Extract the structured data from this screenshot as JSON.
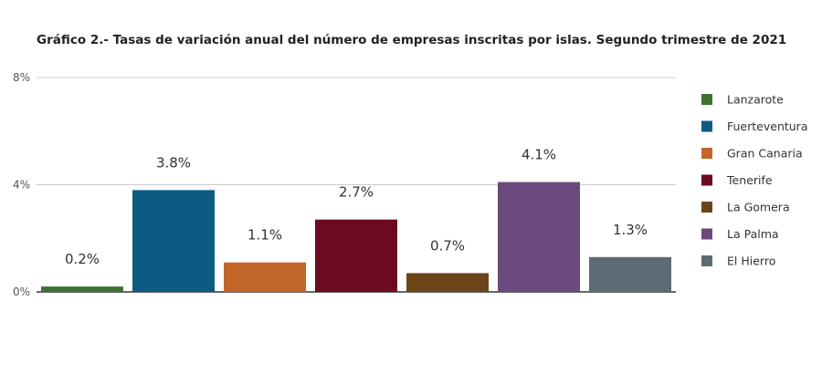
{
  "chart_data": {
    "type": "bar",
    "title": "Gráfico 2.- Tasas de variación anual del número de empresas inscritas por islas. Segundo trimestre de 2021",
    "categories": [
      "Lanzarote",
      "Fuerteventura",
      "Gran Canaria",
      "Tenerife",
      "La Gomera",
      "La Palma",
      "El Hierro"
    ],
    "values": [
      0.2,
      3.8,
      1.1,
      2.7,
      0.7,
      4.1,
      1.3
    ],
    "data_labels": [
      "0.2%",
      "3.8%",
      "1.1%",
      "2.7%",
      "0.7%",
      "4.1%",
      "1.3%"
    ],
    "colors": [
      "#3d7232",
      "#0d5a82",
      "#c2662a",
      "#6c0a22",
      "#6b4519",
      "#6a4a7c",
      "#5d6b75"
    ],
    "ylim": [
      0,
      8
    ],
    "yticks": [
      0,
      4,
      8
    ],
    "ytick_labels": [
      "0%",
      "4%",
      "8%"
    ],
    "grid": true,
    "legend": "right",
    "xlabel": "",
    "ylabel": ""
  }
}
